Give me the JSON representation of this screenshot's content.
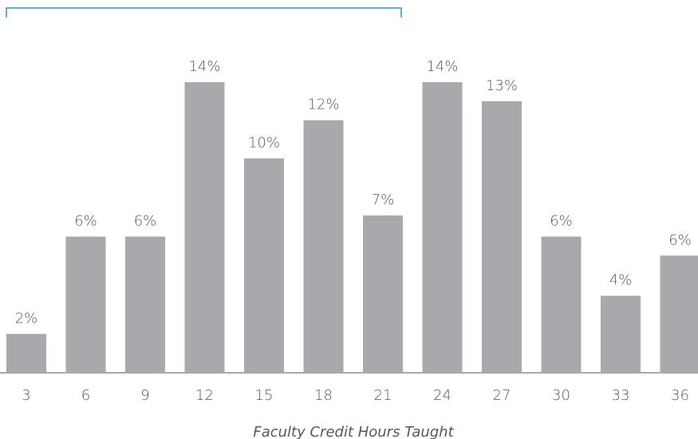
{
  "chart_data": {
    "type": "bar",
    "categories": [
      "3",
      "6",
      "9",
      "12",
      "15",
      "18",
      "21",
      "24",
      "27",
      "30",
      "33",
      "36"
    ],
    "values": [
      1.8,
      6.4,
      6.4,
      13.7,
      10.1,
      11.9,
      7.4,
      13.7,
      12.8,
      6.4,
      3.6,
      5.5
    ],
    "value_labels": [
      "2%",
      "6%",
      "6%",
      "14%",
      "10%",
      "12%",
      "7%",
      "14%",
      "13%",
      "6%",
      "4%",
      "6%"
    ],
    "color": "#a9a8ad",
    "x_label": "Faculty Credit Hours Taught"
  }
}
